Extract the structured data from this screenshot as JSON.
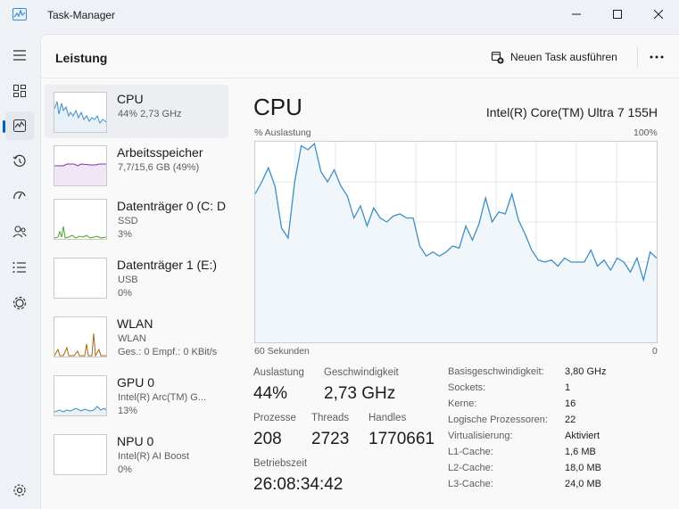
{
  "window": {
    "title": "Task-Manager"
  },
  "header": {
    "page_title": "Leistung",
    "run_task_label": "Neuen Task ausführen"
  },
  "nav": {
    "items": [
      "hamburger-icon",
      "processes-icon",
      "performance-icon",
      "app-history-icon",
      "startup-icon",
      "users-icon",
      "details-icon",
      "services-icon",
      "settings-icon"
    ],
    "active": "performance"
  },
  "perf_items": [
    {
      "name": "CPU",
      "lines": [
        "44% 2,73 GHz"
      ],
      "graph_color": "#3c8fc4"
    },
    {
      "name": "Arbeitsspeicher",
      "lines": [
        "7,7/15,6 GB (49%)"
      ],
      "graph_color": "#8b2ca8"
    },
    {
      "name": "Datenträger 0 (C: D",
      "lines": [
        "SSD",
        "3%"
      ],
      "graph_color": "#4da32b"
    },
    {
      "name": "Datenträger 1 (E:)",
      "lines": [
        "USB",
        "0%"
      ],
      "graph_color": "#4da32b"
    },
    {
      "name": "WLAN",
      "lines": [
        "WLAN",
        "Ges.: 0 Empf.: 0 KBit/s"
      ],
      "graph_color": "#a86418"
    },
    {
      "name": "GPU 0",
      "lines": [
        "Intel(R) Arc(TM) G...",
        "13%"
      ],
      "graph_color": "#3c8fc4"
    },
    {
      "name": "NPU 0",
      "lines": [
        "Intel(R) AI Boost",
        "0%"
      ],
      "graph_color": "#3c8fc4"
    }
  ],
  "detail": {
    "title": "CPU",
    "model": "Intel(R) Core(TM) Ultra 7 155H",
    "y_label": "% Auslastung",
    "y_max_label": "100%",
    "x_left_label": "60 Sekunden",
    "x_right_label": "0",
    "stats": {
      "util_label": "Auslastung",
      "util_value": "44%",
      "speed_label": "Geschwindigkeit",
      "speed_value": "2,73 GHz",
      "proc_label": "Prozesse",
      "proc_value": "208",
      "threads_label": "Threads",
      "threads_value": "2723",
      "handles_label": "Handles",
      "handles_value": "1770661",
      "uptime_label": "Betriebszeit",
      "uptime_value": "26:08:34:42"
    },
    "specs": [
      {
        "k": "Basisgeschwindigkeit:",
        "v": "3,80 GHz"
      },
      {
        "k": "Sockets:",
        "v": "1"
      },
      {
        "k": "Kerne:",
        "v": "16"
      },
      {
        "k": "Logische Prozessoren:",
        "v": "22"
      },
      {
        "k": "Virtualisierung:",
        "v": "Aktiviert"
      },
      {
        "k": "L1-Cache:",
        "v": "1,6 MB"
      },
      {
        "k": "L2-Cache:",
        "v": "18,0 MB"
      },
      {
        "k": "L3-Cache:",
        "v": "24,0 MB"
      }
    ]
  },
  "chart_data": {
    "type": "area",
    "ylim": [
      0,
      100
    ],
    "xlim": [
      60,
      0
    ],
    "values": [
      74,
      80,
      87,
      78,
      57,
      52,
      80,
      98,
      96,
      99,
      85,
      80,
      86,
      78,
      73,
      62,
      68,
      58,
      67,
      62,
      60,
      63,
      64,
      62,
      62,
      48,
      43,
      45,
      43,
      45,
      48,
      47,
      58,
      51,
      59,
      72,
      60,
      65,
      64,
      74,
      61,
      54,
      46,
      41,
      40,
      41,
      38,
      42,
      40,
      40,
      40,
      46,
      38,
      41,
      36,
      42,
      40,
      35,
      42,
      31,
      45,
      42
    ]
  },
  "colors": {
    "accent": "#005fb8",
    "cpu_line": "#3c8fc4",
    "cpu_fill": "#f1f6fa",
    "grid": "#e1e6ec"
  }
}
